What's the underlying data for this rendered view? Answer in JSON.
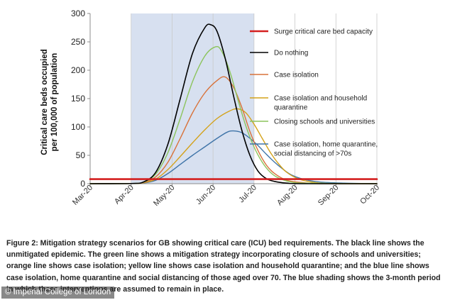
{
  "chart_data": {
    "type": "line",
    "ylabel": "Critical care beds occupied per 100,000 of population",
    "ylabel_lines": [
      "Critical care beds occupied",
      "per 100,000 of population"
    ],
    "xlabel": "",
    "ylim": [
      0,
      300
    ],
    "yticks": [
      0,
      50,
      100,
      150,
      200,
      250,
      300
    ],
    "xlim": [
      0,
      7
    ],
    "xtick_labels": [
      "Mar-20",
      "Apr-20",
      "May-20",
      "Jun-20",
      "Jul-20",
      "Aug-20",
      "Sep-20",
      "Oct-20"
    ],
    "grid": "vertical",
    "shaded_region": {
      "x_start": 1.0,
      "x_end": 4.0,
      "color": "#d7e0f0",
      "meaning": "3-month period of interventions"
    },
    "legend_position": "right",
    "series": [
      {
        "name": "Surge critical care bed capacity",
        "color": "#d42020",
        "width": 2.6,
        "points": [
          [
            0,
            8
          ],
          [
            7,
            8
          ]
        ]
      },
      {
        "name": "Do nothing",
        "color": "#000000",
        "width": 1.6,
        "points": [
          [
            0,
            0
          ],
          [
            1.0,
            0.3
          ],
          [
            1.3,
            3
          ],
          [
            1.6,
            20
          ],
          [
            1.9,
            70
          ],
          [
            2.2,
            150
          ],
          [
            2.5,
            230
          ],
          [
            2.8,
            275
          ],
          [
            2.95,
            280
          ],
          [
            3.1,
            268
          ],
          [
            3.3,
            220
          ],
          [
            3.5,
            155
          ],
          [
            3.7,
            95
          ],
          [
            3.9,
            50
          ],
          [
            4.1,
            22
          ],
          [
            4.3,
            9
          ],
          [
            4.5,
            4
          ],
          [
            4.8,
            1
          ],
          [
            5.2,
            0
          ],
          [
            7,
            0
          ]
        ]
      },
      {
        "name": "Case isolation",
        "color": "#d8723a",
        "width": 1.4,
        "points": [
          [
            0,
            0
          ],
          [
            1.0,
            0.3
          ],
          [
            1.3,
            2
          ],
          [
            1.6,
            12
          ],
          [
            1.9,
            38
          ],
          [
            2.2,
            80
          ],
          [
            2.5,
            125
          ],
          [
            2.8,
            160
          ],
          [
            3.1,
            182
          ],
          [
            3.3,
            188
          ],
          [
            3.5,
            170
          ],
          [
            3.7,
            135
          ],
          [
            3.9,
            92
          ],
          [
            4.1,
            58
          ],
          [
            4.3,
            33
          ],
          [
            4.5,
            18
          ],
          [
            4.8,
            6
          ],
          [
            5.2,
            2
          ],
          [
            5.6,
            0
          ],
          [
            7,
            0
          ]
        ]
      },
      {
        "name": "Case isolation and household quarantine",
        "color": "#d4a21a",
        "width": 1.4,
        "points": [
          [
            0,
            0
          ],
          [
            1.0,
            0.3
          ],
          [
            1.3,
            1.5
          ],
          [
            1.6,
            8
          ],
          [
            1.9,
            25
          ],
          [
            2.2,
            48
          ],
          [
            2.5,
            72
          ],
          [
            2.8,
            95
          ],
          [
            3.1,
            115
          ],
          [
            3.4,
            128
          ],
          [
            3.6,
            132
          ],
          [
            3.8,
            125
          ],
          [
            4.0,
            105
          ],
          [
            4.2,
            80
          ],
          [
            4.4,
            55
          ],
          [
            4.6,
            35
          ],
          [
            4.8,
            20
          ],
          [
            5.1,
            8
          ],
          [
            5.5,
            2
          ],
          [
            6.0,
            0
          ],
          [
            7,
            0
          ]
        ]
      },
      {
        "name": "Closing schools and universities",
        "color": "#8cc45c",
        "width": 1.4,
        "points": [
          [
            0,
            0
          ],
          [
            1.0,
            0.3
          ],
          [
            1.3,
            2.5
          ],
          [
            1.6,
            17
          ],
          [
            1.9,
            55
          ],
          [
            2.2,
            115
          ],
          [
            2.5,
            180
          ],
          [
            2.8,
            225
          ],
          [
            3.05,
            241
          ],
          [
            3.2,
            235
          ],
          [
            3.4,
            200
          ],
          [
            3.6,
            150
          ],
          [
            3.8,
            102
          ],
          [
            4.0,
            65
          ],
          [
            4.2,
            38
          ],
          [
            4.4,
            20
          ],
          [
            4.6,
            10
          ],
          [
            4.9,
            3
          ],
          [
            5.3,
            1
          ],
          [
            7,
            0
          ]
        ]
      },
      {
        "name": "Case isolation, home quarantine, social distancing of >70s",
        "color": "#3f74a8",
        "width": 1.4,
        "points": [
          [
            0,
            0
          ],
          [
            1.0,
            0.3
          ],
          [
            1.3,
            1.2
          ],
          [
            1.6,
            6
          ],
          [
            1.9,
            18
          ],
          [
            2.2,
            34
          ],
          [
            2.5,
            50
          ],
          [
            2.8,
            65
          ],
          [
            3.1,
            80
          ],
          [
            3.35,
            91
          ],
          [
            3.5,
            93
          ],
          [
            3.7,
            90
          ],
          [
            3.9,
            80
          ],
          [
            4.1,
            67
          ],
          [
            4.3,
            52
          ],
          [
            4.5,
            38
          ],
          [
            4.7,
            26
          ],
          [
            4.9,
            16
          ],
          [
            5.2,
            8
          ],
          [
            5.6,
            3
          ],
          [
            6.2,
            1
          ],
          [
            7,
            0
          ]
        ]
      }
    ],
    "legend": [
      {
        "label_lines": [
          "Surge critical care bed capacity"
        ]
      },
      {
        "label_lines": [
          "Do nothing"
        ]
      },
      {
        "label_lines": [
          "Case isolation"
        ]
      },
      {
        "label_lines": [
          "Case isolation and household",
          "quarantine"
        ]
      },
      {
        "label_lines": [
          "Closing schools and universities"
        ]
      },
      {
        "label_lines": [
          "Case isolation, home quarantine,",
          "social distancing of >70s"
        ]
      }
    ]
  },
  "caption": "Figure 2: Mitigation strategy scenarios for GB showing critical care (ICU) bed requirements. The black line shows the unmitigated epidemic. The green line shows a mitigation strategy incorporating closure of schools and universities; orange line shows case isolation; yellow line shows case isolation and household quarantine; and the blue line shows case isolation, home quarantine and social distancing of those aged over 70. The blue shading shows the 3-month period in which these interventions are assumed to remain in place.",
  "credit": "© Imperial College of London"
}
